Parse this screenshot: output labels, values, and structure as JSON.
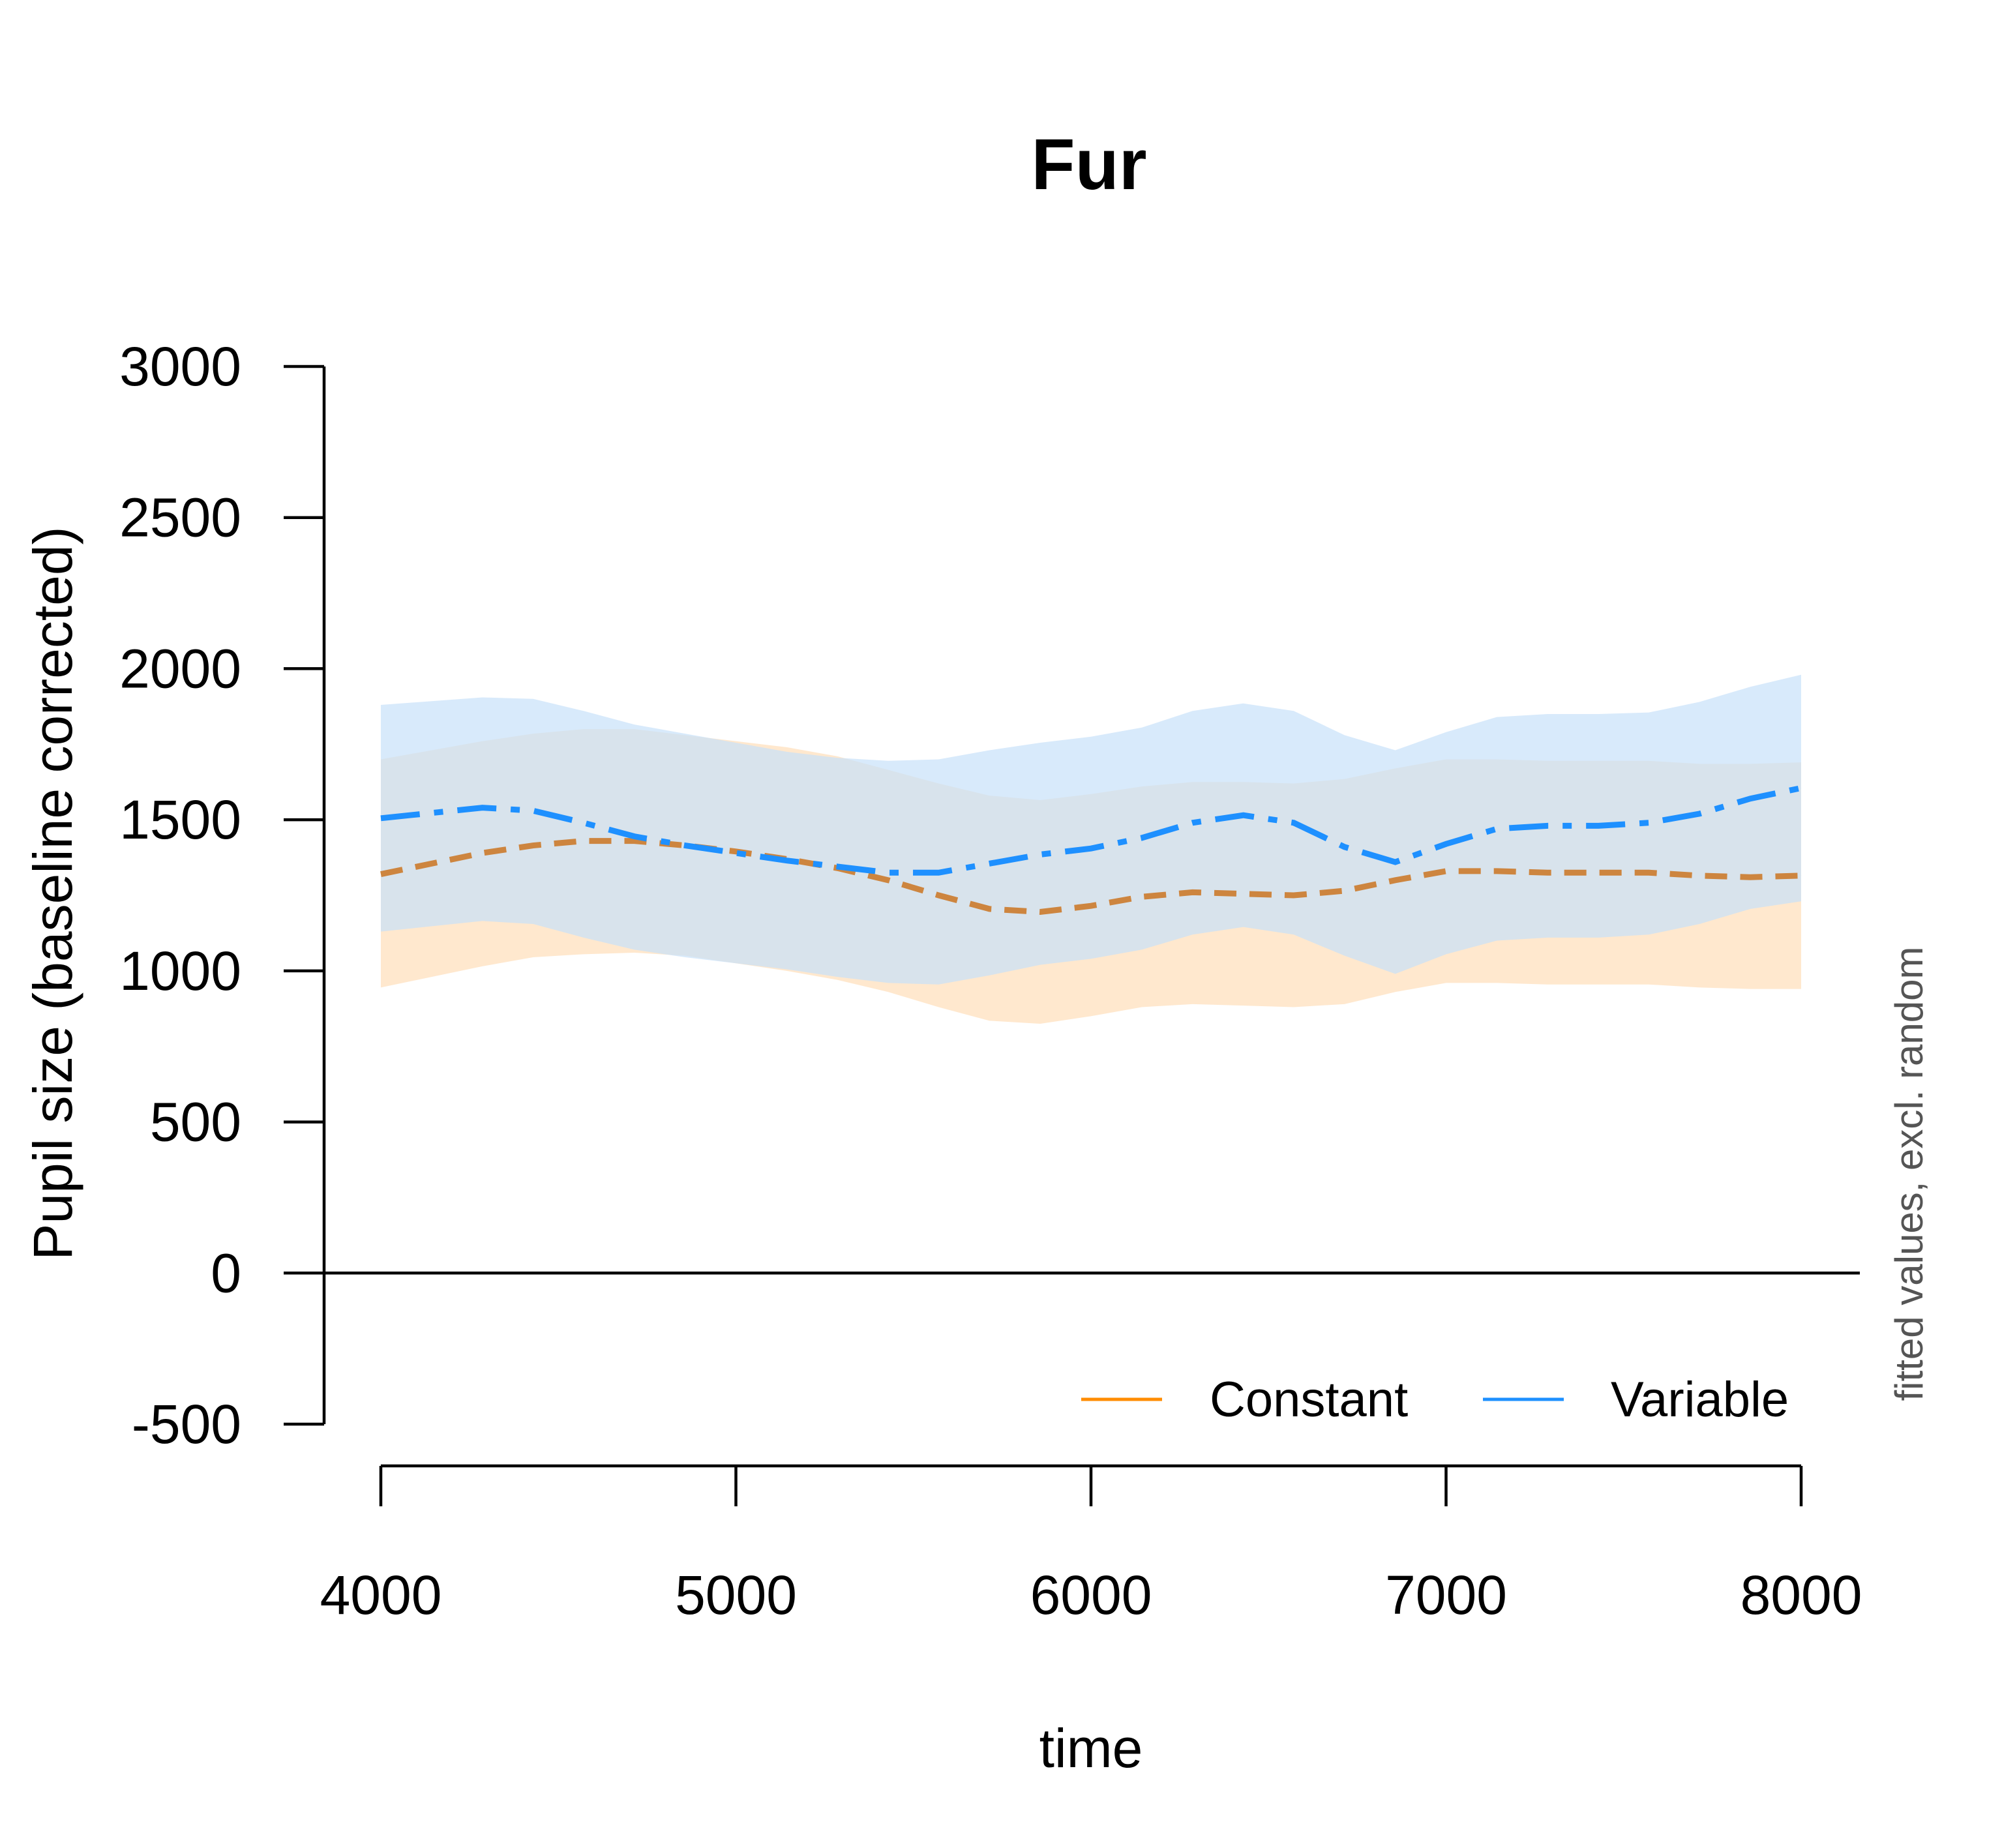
{
  "chart_data": {
    "type": "line",
    "title": "Fur",
    "xlabel": "time",
    "ylabel": "Pupil size (baseline corrected)",
    "side_note": "fitted values, excl. random",
    "xlim": [
      4000,
      8000
    ],
    "ylim": [
      -500,
      3000
    ],
    "x_ticks": [
      "4000",
      "5000",
      "6000",
      "7000",
      "8000"
    ],
    "y_ticks": [
      "-500",
      "0",
      "500",
      "1000",
      "1500",
      "2000",
      "2500",
      "3000"
    ],
    "reference_line_y": 0,
    "legend_position": "bottom-right",
    "x": [
      4000,
      4286,
      4429,
      4571,
      4714,
      4857,
      5000,
      5143,
      5286,
      5429,
      5571,
      5714,
      5857,
      6000,
      6143,
      6286,
      6429,
      6571,
      6714,
      6857,
      7000,
      7143,
      7286,
      7429,
      7571,
      7714,
      7857,
      8000
    ],
    "series": [
      {
        "name": "Constant",
        "legend_color": "#FF8C00",
        "line_color": "#CD853F",
        "band_color": "#FFDEB9",
        "values": [
          1320,
          1390,
          1415,
          1430,
          1430,
          1415,
          1395,
          1370,
          1340,
          1300,
          1250,
          1205,
          1195,
          1215,
          1245,
          1260,
          1255,
          1250,
          1265,
          1300,
          1330,
          1330,
          1325,
          1325,
          1325,
          1315,
          1310,
          1315
        ],
        "lower": [
          945,
          1015,
          1045,
          1055,
          1060,
          1050,
          1025,
          1000,
          970,
          930,
          880,
          835,
          825,
          850,
          880,
          890,
          885,
          880,
          890,
          930,
          960,
          960,
          955,
          955,
          955,
          945,
          940,
          940
        ],
        "upper": [
          1700,
          1760,
          1785,
          1800,
          1800,
          1780,
          1760,
          1740,
          1710,
          1665,
          1620,
          1580,
          1565,
          1585,
          1610,
          1625,
          1625,
          1620,
          1635,
          1670,
          1700,
          1700,
          1695,
          1695,
          1695,
          1685,
          1685,
          1690
        ]
      },
      {
        "name": "Variable",
        "legend_color": "#1E90FF",
        "line_color": "#1E90FF",
        "band_color": "#C8E1FA",
        "values": [
          1505,
          1540,
          1530,
          1490,
          1445,
          1415,
          1390,
          1365,
          1345,
          1325,
          1325,
          1355,
          1385,
          1405,
          1440,
          1490,
          1515,
          1490,
          1410,
          1360,
          1420,
          1470,
          1480,
          1480,
          1490,
          1520,
          1570,
          1605
        ],
        "lower": [
          1130,
          1165,
          1155,
          1110,
          1070,
          1045,
          1025,
          1005,
          980,
          960,
          955,
          985,
          1020,
          1040,
          1070,
          1120,
          1145,
          1120,
          1050,
          990,
          1055,
          1100,
          1110,
          1110,
          1120,
          1155,
          1205,
          1230
        ],
        "upper": [
          1880,
          1905,
          1900,
          1860,
          1815,
          1785,
          1755,
          1725,
          1705,
          1695,
          1700,
          1730,
          1755,
          1775,
          1805,
          1860,
          1885,
          1860,
          1780,
          1730,
          1790,
          1840,
          1850,
          1850,
          1855,
          1890,
          1940,
          1980
        ]
      }
    ]
  }
}
